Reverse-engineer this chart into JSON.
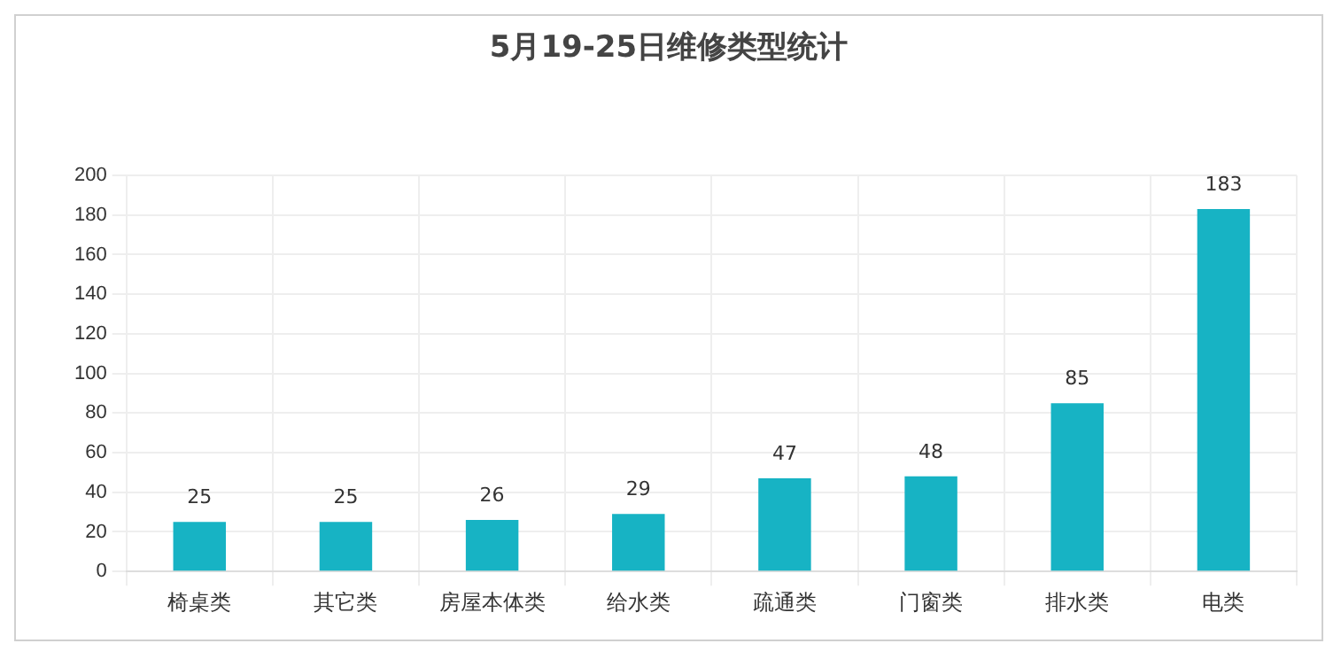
{
  "chart_data": {
    "type": "bar",
    "title": "5月19-25日维修类型统计",
    "categories": [
      "椅桌类",
      "其它类",
      "房屋本体类",
      "给水类",
      "疏通类",
      "门窗类",
      "排水类",
      "电类"
    ],
    "values": [
      25,
      25,
      26,
      29,
      47,
      48,
      85,
      183
    ],
    "color": "#17b3c4",
    "ylim": [
      0,
      200
    ],
    "yticks": [
      0,
      20,
      40,
      60,
      80,
      100,
      120,
      140,
      160,
      180,
      200
    ],
    "grid": true,
    "data_labels": true
  }
}
